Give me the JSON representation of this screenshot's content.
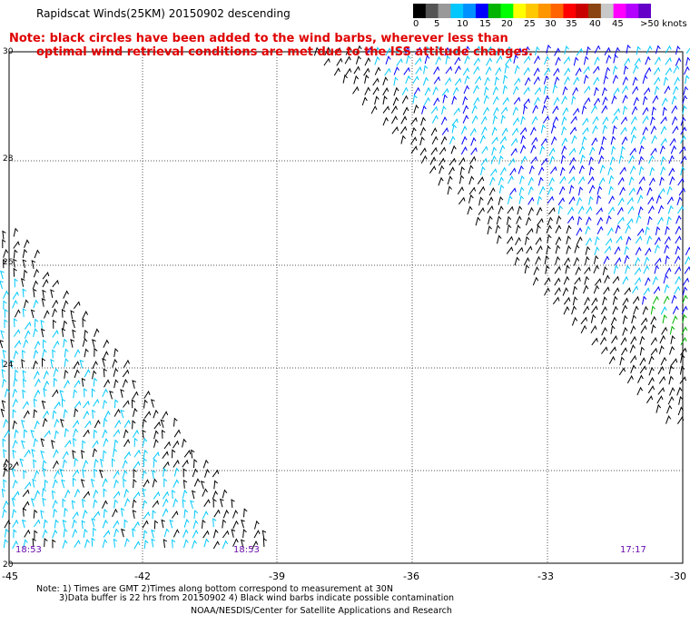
{
  "title": "Rapidscat Winds(25KM) 20150902 descending",
  "note_red": {
    "line1": "Note: black circles have been added to the wind barbs, wherever less than",
    "line2": "optimal wind retrieval conditions are met due to the ISS attitude changes."
  },
  "legend": {
    "labels": [
      "0",
      "5",
      "10",
      "15",
      "20",
      "25",
      "30",
      "35",
      "40",
      "45",
      ">50 knots"
    ],
    "colors": [
      "#000000",
      "#555555",
      "#999999",
      "#00c8ff",
      "#0090ff",
      "#0000ff",
      "#00b400",
      "#00ff00",
      "#ffff00",
      "#ffc800",
      "#ff9600",
      "#ff6400",
      "#ff0000",
      "#c80000",
      "#8b4513",
      "#c8c8c8",
      "#ff00ff",
      "#b400ff",
      "#6400c8"
    ]
  },
  "map": {
    "lon_range": [
      -45,
      -30
    ],
    "lat_range": [
      20,
      30
    ],
    "x_ticks": [
      "-45",
      "-42",
      "-39",
      "-36",
      "-33",
      "-30"
    ],
    "y_ticks": [
      "30",
      "28",
      "26",
      "24",
      "22",
      "20"
    ],
    "pass_times": [
      "18:53",
      "18:53",
      "17:17"
    ],
    "barb_colors": {
      "black": "#000000",
      "cyan": "#00c8ff",
      "blue": "#0000ff",
      "green": "#00b400"
    }
  },
  "footer": {
    "line1": "Note: 1) Times are GMT 2)Times along bottom correspond to measurement at 30N",
    "line2": "3)Data buffer is 22 hrs from 20150902 4) Black wind barbs indicate possible contamination",
    "line3": "NOAA/NESDIS/Center for Satellite Applications and Research"
  }
}
